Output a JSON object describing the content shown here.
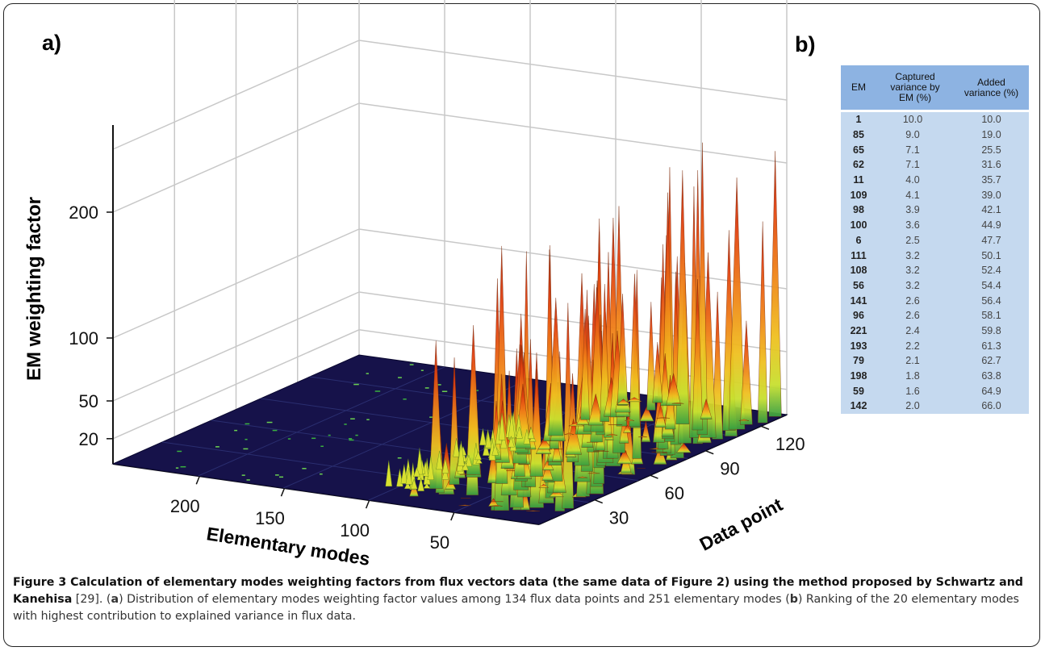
{
  "figure": {
    "panel_a_label": "a)",
    "panel_b_label": "b)"
  },
  "chart_data": [
    {
      "type": "surface-3d",
      "zlabel": "EM weighting factor",
      "xlabel": "Elementary modes",
      "ylabel": "Data point",
      "z_ticks": [
        "20",
        "50",
        "100",
        "200"
      ],
      "x_ticks": [
        "200",
        "150",
        "100",
        "50"
      ],
      "y_ticks": [
        "30",
        "60",
        "90",
        "120"
      ],
      "z_range": [
        0,
        250
      ],
      "x_range": [
        0,
        251
      ],
      "y_range": [
        0,
        134
      ],
      "grid": true,
      "colormap": [
        "#1a1450",
        "#2a6a3a",
        "#7ec84a",
        "#e8e030",
        "#f0a020",
        "#e05010",
        "#a02008"
      ],
      "description_peaks": "Large weighting-factor peaks (up to ~230) for elementary modes below ~70; near-zero values elsewhere."
    },
    {
      "type": "table",
      "columns": [
        "EM",
        "Captured variance by EM (%)",
        "Added variance (%)"
      ],
      "header_lines": {
        "em": "EM",
        "captured_1": "Captured",
        "captured_2": "variance by",
        "captured_3": "EM (%)",
        "added_1": "Added",
        "added_2": "variance (%)"
      },
      "rows": [
        [
          "1",
          "10.0",
          "10.0"
        ],
        [
          "85",
          "9.0",
          "19.0"
        ],
        [
          "65",
          "7.1",
          "25.5"
        ],
        [
          "62",
          "7.1",
          "31.6"
        ],
        [
          "11",
          "4.0",
          "35.7"
        ],
        [
          "109",
          "4.1",
          "39.0"
        ],
        [
          "98",
          "3.9",
          "42.1"
        ],
        [
          "100",
          "3.6",
          "44.9"
        ],
        [
          "6",
          "2.5",
          "47.7"
        ],
        [
          "111",
          "3.2",
          "50.1"
        ],
        [
          "108",
          "3.2",
          "52.4"
        ],
        [
          "56",
          "3.2",
          "54.4"
        ],
        [
          "141",
          "2.6",
          "56.4"
        ],
        [
          "96",
          "2.6",
          "58.1"
        ],
        [
          "221",
          "2.4",
          "59.8"
        ],
        [
          "193",
          "2.2",
          "61.3"
        ],
        [
          "79",
          "2.1",
          "62.7"
        ],
        [
          "198",
          "1.8",
          "63.8"
        ],
        [
          "59",
          "1.6",
          "64.9"
        ],
        [
          "142",
          "2.0",
          "66.0"
        ]
      ]
    }
  ],
  "caption": {
    "title": "Figure 3 Calculation of elementary modes weighting factors from flux vectors data (the same data of Figure 2) using the method proposed by Schwartz and Kanehisa",
    "ref": " [29]. (",
    "a_letter": "a",
    "a_text": ") Distribution of elementary modes weighting factor values among 134 flux data points and 251 elementary modes (",
    "b_letter": "b",
    "b_text": ") Ranking of the 20 elementary modes with highest contribution to explained variance in flux data."
  }
}
